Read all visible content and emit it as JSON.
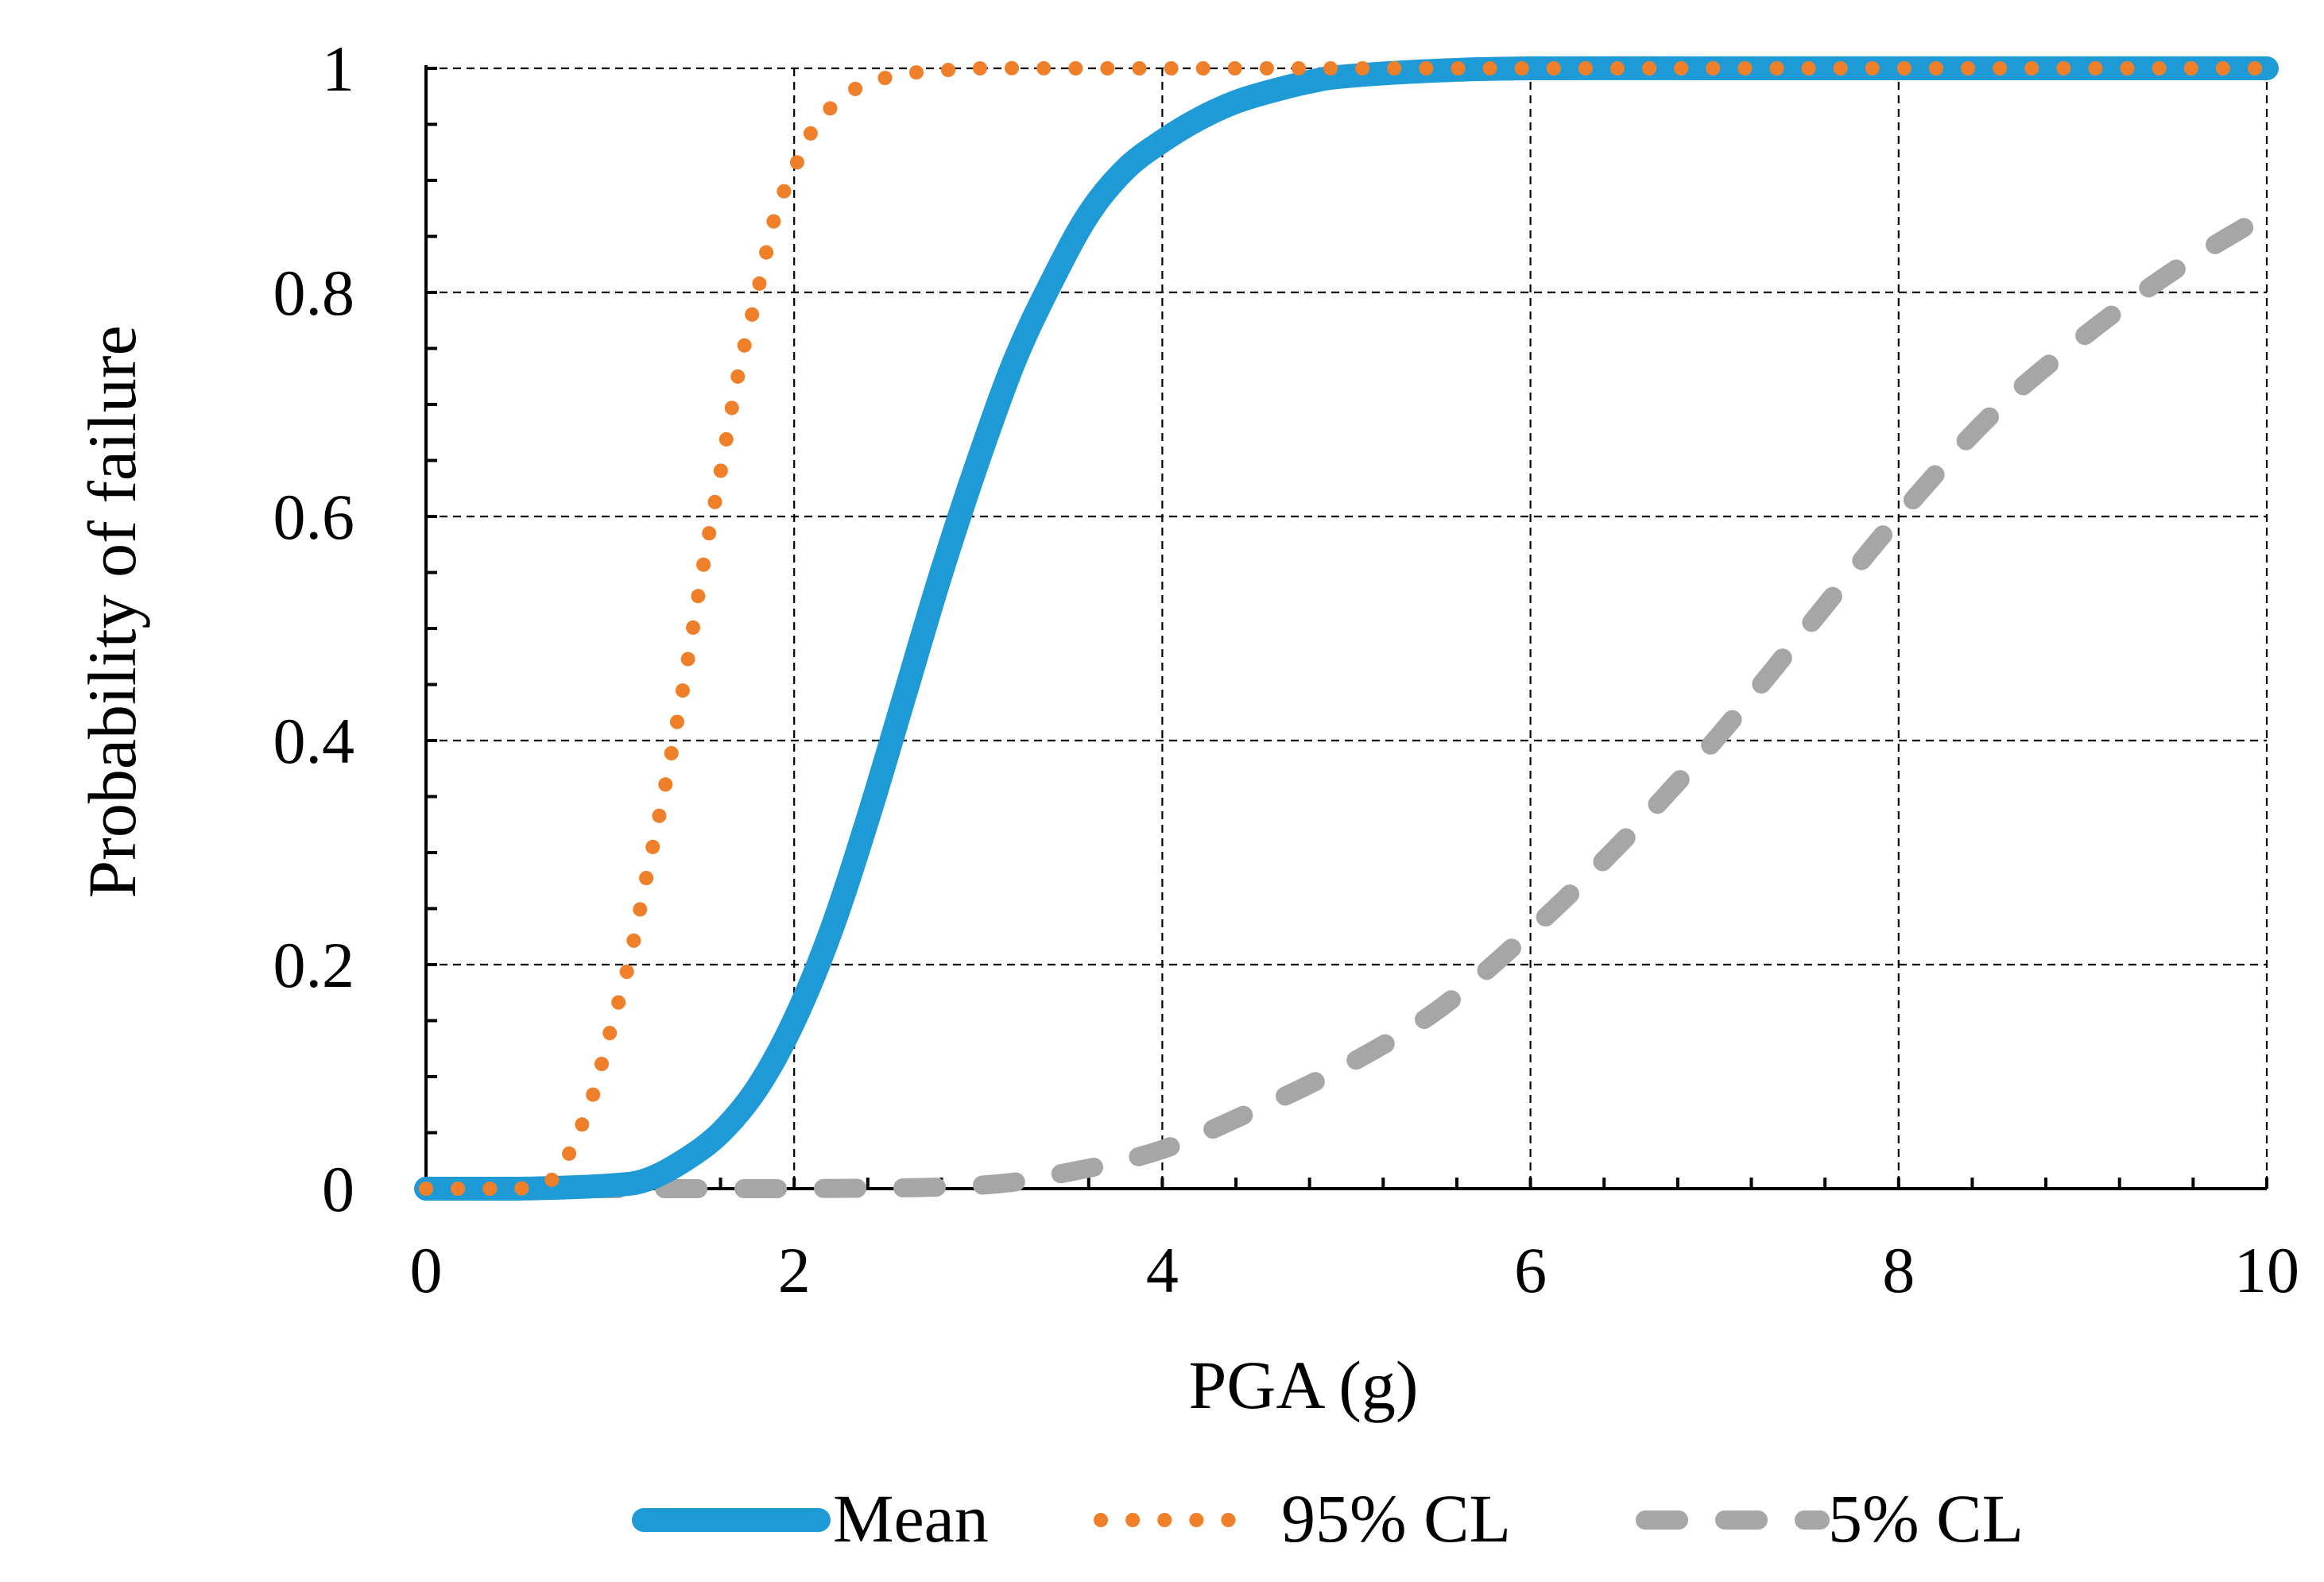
{
  "chart_data": {
    "type": "line",
    "title": "",
    "xlabel": "PGA (g)",
    "ylabel": "Probability of failure",
    "xlim": [
      0,
      10
    ],
    "ylim": [
      0,
      1
    ],
    "x_ticks": [
      0,
      2,
      4,
      6,
      8,
      10
    ],
    "x_tick_labels": [
      "0",
      "2",
      "4",
      "6",
      "8",
      "10"
    ],
    "x_minor_step": 0.4,
    "y_ticks": [
      0,
      0.2,
      0.4,
      0.6,
      0.8,
      1
    ],
    "y_tick_labels": [
      "0",
      "0.2",
      "0.4",
      "0.6",
      "0.8",
      "1"
    ],
    "y_minor_step": 0.05,
    "grid": true,
    "legend_position": "bottom-center",
    "series": [
      {
        "name": "Mean",
        "style": "solid-thick",
        "color": "#1E9BD7",
        "x": [
          0,
          0.5,
          1.0,
          1.2,
          1.4,
          1.6,
          1.8,
          2.0,
          2.2,
          2.4,
          2.6,
          2.8,
          3.0,
          3.2,
          3.4,
          3.6,
          3.8,
          4.0,
          4.2,
          4.4,
          4.6,
          4.8,
          5.0,
          5.5,
          6.0,
          7.0,
          8.0,
          9.0,
          10.0
        ],
        "y": [
          0,
          0,
          0.003,
          0.008,
          0.025,
          0.05,
          0.09,
          0.15,
          0.23,
          0.33,
          0.44,
          0.55,
          0.65,
          0.74,
          0.81,
          0.87,
          0.91,
          0.935,
          0.955,
          0.97,
          0.98,
          0.988,
          0.993,
          0.998,
          1,
          1,
          1,
          1,
          1
        ]
      },
      {
        "name": "95% CL",
        "style": "dotted",
        "color": "#F07F2A",
        "x": [
          0,
          0.5,
          0.7,
          0.8,
          0.9,
          1.0,
          1.1,
          1.2,
          1.3,
          1.4,
          1.5,
          1.6,
          1.7,
          1.8,
          1.9,
          2.0,
          2.1,
          2.2,
          2.3,
          2.4,
          2.6,
          2.8,
          3.0,
          3.5,
          4.0,
          5.0,
          6.0,
          7.0,
          8.0,
          9.0,
          10.0
        ],
        "y": [
          0,
          0,
          0.01,
          0.04,
          0.08,
          0.14,
          0.2,
          0.28,
          0.36,
          0.45,
          0.55,
          0.64,
          0.73,
          0.8,
          0.87,
          0.91,
          0.945,
          0.965,
          0.978,
          0.987,
          0.995,
          0.998,
          1,
          1,
          1,
          1,
          1,
          1,
          1,
          1,
          1
        ]
      },
      {
        "name": "5% CL",
        "style": "dashed",
        "color": "#A6A6A6",
        "x": [
          0,
          2.0,
          3.0,
          3.5,
          4.0,
          4.5,
          5.0,
          5.5,
          6.0,
          6.5,
          7.0,
          7.5,
          8.0,
          8.5,
          9.0,
          9.5,
          10.0
        ],
        "y": [
          0,
          0,
          0.003,
          0.015,
          0.035,
          0.07,
          0.11,
          0.16,
          0.23,
          0.31,
          0.4,
          0.5,
          0.6,
          0.69,
          0.76,
          0.82,
          0.87
        ]
      }
    ]
  }
}
